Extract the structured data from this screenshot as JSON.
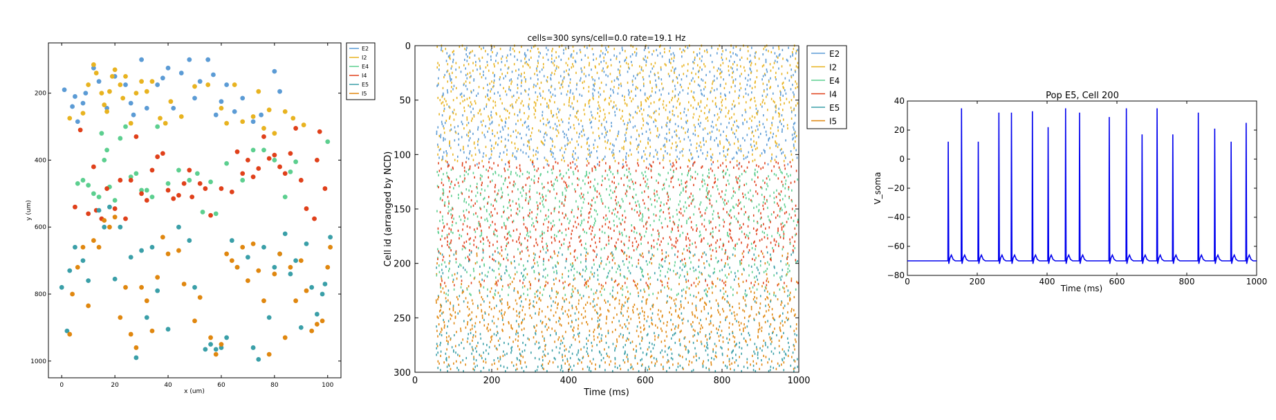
{
  "colors": {
    "E2": "#5b9bd5",
    "I2": "#e8b320",
    "E4": "#5ccf8f",
    "I4": "#e0401a",
    "E5": "#3a9fa8",
    "I5": "#e0870f",
    "trace": "#0000ee"
  },
  "chart_data": [
    {
      "type": "scatter",
      "title": "",
      "xlabel": "x (um)",
      "ylabel": "y (um)",
      "xlim": [
        -5,
        105
      ],
      "ylim": [
        1050,
        50
      ],
      "y_inverted": true,
      "xticks": [
        0,
        20,
        40,
        60,
        80,
        100
      ],
      "yticks": [
        200,
        400,
        600,
        800,
        1000
      ],
      "legend": {
        "placement": "outside-right",
        "entries": [
          "E2",
          "I2",
          "E4",
          "I4",
          "E5",
          "I5"
        ]
      },
      "series": [
        {
          "name": "E2",
          "points": [
            [
              1,
              190
            ],
            [
              4,
              240
            ],
            [
              5,
              210
            ],
            [
              6,
              285
            ],
            [
              8,
              230
            ],
            [
              9,
              200
            ],
            [
              12,
              125
            ],
            [
              14,
              165
            ],
            [
              17,
              245
            ],
            [
              20,
              150
            ],
            [
              24,
              175
            ],
            [
              26,
              230
            ],
            [
              27,
              265
            ],
            [
              30,
              100
            ],
            [
              32,
              245
            ],
            [
              36,
              175
            ],
            [
              38,
              155
            ],
            [
              40,
              125
            ],
            [
              42,
              245
            ],
            [
              45,
              140
            ],
            [
              48,
              100
            ],
            [
              50,
              215
            ],
            [
              52,
              165
            ],
            [
              55,
              100
            ],
            [
              57,
              145
            ],
            [
              58,
              265
            ],
            [
              60,
              225
            ],
            [
              62,
              175
            ],
            [
              65,
              255
            ],
            [
              68,
              215
            ],
            [
              72,
              285
            ],
            [
              75,
              265
            ],
            [
              80,
              135
            ],
            [
              82,
              195
            ]
          ]
        },
        {
          "name": "I2",
          "points": [
            [
              3,
              275
            ],
            [
              8,
              260
            ],
            [
              10,
              175
            ],
            [
              12,
              115
            ],
            [
              13,
              140
            ],
            [
              15,
              200
            ],
            [
              16,
              235
            ],
            [
              17,
              255
            ],
            [
              18,
              195
            ],
            [
              19,
              150
            ],
            [
              20,
              130
            ],
            [
              22,
              175
            ],
            [
              23,
              215
            ],
            [
              24,
              150
            ],
            [
              26,
              290
            ],
            [
              28,
              200
            ],
            [
              30,
              165
            ],
            [
              32,
              195
            ],
            [
              34,
              165
            ],
            [
              37,
              275
            ],
            [
              39,
              290
            ],
            [
              41,
              225
            ],
            [
              45,
              270
            ],
            [
              50,
              180
            ],
            [
              55,
              175
            ],
            [
              60,
              245
            ],
            [
              62,
              290
            ],
            [
              65,
              175
            ],
            [
              68,
              285
            ],
            [
              72,
              270
            ],
            [
              74,
              195
            ],
            [
              76,
              305
            ],
            [
              78,
              250
            ],
            [
              80,
              320
            ],
            [
              84,
              255
            ],
            [
              87,
              275
            ],
            [
              91,
              295
            ]
          ]
        },
        {
          "name": "E4",
          "points": [
            [
              6,
              470
            ],
            [
              8,
              460
            ],
            [
              10,
              475
            ],
            [
              12,
              500
            ],
            [
              14,
              510
            ],
            [
              15,
              320
            ],
            [
              16,
              400
            ],
            [
              17,
              370
            ],
            [
              18,
              480
            ],
            [
              20,
              520
            ],
            [
              22,
              335
            ],
            [
              24,
              300
            ],
            [
              26,
              450
            ],
            [
              28,
              440
            ],
            [
              30,
              490
            ],
            [
              32,
              490
            ],
            [
              34,
              510
            ],
            [
              36,
              300
            ],
            [
              40,
              470
            ],
            [
              44,
              430
            ],
            [
              48,
              460
            ],
            [
              51,
              440
            ],
            [
              53,
              555
            ],
            [
              56,
              465
            ],
            [
              58,
              560
            ],
            [
              62,
              410
            ],
            [
              68,
              460
            ],
            [
              72,
              370
            ],
            [
              76,
              370
            ],
            [
              80,
              400
            ],
            [
              84,
              510
            ],
            [
              86,
              435
            ],
            [
              88,
              405
            ],
            [
              100,
              345
            ]
          ]
        },
        {
          "name": "I4",
          "points": [
            [
              5,
              540
            ],
            [
              7,
              310
            ],
            [
              10,
              560
            ],
            [
              12,
              420
            ],
            [
              13,
              550
            ],
            [
              15,
              575
            ],
            [
              17,
              485
            ],
            [
              20,
              545
            ],
            [
              22,
              460
            ],
            [
              24,
              575
            ],
            [
              26,
              460
            ],
            [
              28,
              330
            ],
            [
              30,
              500
            ],
            [
              32,
              520
            ],
            [
              34,
              430
            ],
            [
              36,
              390
            ],
            [
              38,
              380
            ],
            [
              40,
              490
            ],
            [
              42,
              515
            ],
            [
              44,
              505
            ],
            [
              46,
              470
            ],
            [
              48,
              430
            ],
            [
              49,
              510
            ],
            [
              52,
              470
            ],
            [
              54,
              485
            ],
            [
              56,
              565
            ],
            [
              60,
              485
            ],
            [
              64,
              495
            ],
            [
              66,
              375
            ],
            [
              68,
              440
            ],
            [
              70,
              400
            ],
            [
              72,
              450
            ],
            [
              74,
              425
            ],
            [
              76,
              330
            ],
            [
              78,
              395
            ],
            [
              80,
              385
            ],
            [
              82,
              420
            ],
            [
              84,
              440
            ],
            [
              86,
              380
            ],
            [
              88,
              305
            ],
            [
              90,
              460
            ],
            [
              92,
              545
            ],
            [
              95,
              575
            ],
            [
              96,
              400
            ],
            [
              97,
              315
            ],
            [
              99,
              485
            ]
          ]
        },
        {
          "name": "E5",
          "points": [
            [
              0,
              780
            ],
            [
              2,
              910
            ],
            [
              3,
              730
            ],
            [
              5,
              660
            ],
            [
              8,
              700
            ],
            [
              10,
              760
            ],
            [
              14,
              550
            ],
            [
              16,
              600
            ],
            [
              18,
              540
            ],
            [
              20,
              755
            ],
            [
              22,
              600
            ],
            [
              26,
              690
            ],
            [
              28,
              990
            ],
            [
              30,
              670
            ],
            [
              32,
              870
            ],
            [
              34,
              660
            ],
            [
              36,
              790
            ],
            [
              40,
              905
            ],
            [
              44,
              600
            ],
            [
              48,
              640
            ],
            [
              50,
              780
            ],
            [
              54,
              965
            ],
            [
              56,
              950
            ],
            [
              58,
              965
            ],
            [
              60,
              960
            ],
            [
              62,
              930
            ],
            [
              64,
              640
            ],
            [
              66,
              720
            ],
            [
              70,
              690
            ],
            [
              72,
              960
            ],
            [
              74,
              995
            ],
            [
              76,
              660
            ],
            [
              78,
              870
            ],
            [
              80,
              720
            ],
            [
              82,
              680
            ],
            [
              84,
              620
            ],
            [
              86,
              740
            ],
            [
              88,
              700
            ],
            [
              90,
              900
            ],
            [
              92,
              650
            ],
            [
              94,
              780
            ],
            [
              96,
              860
            ],
            [
              98,
              800
            ],
            [
              99,
              770
            ],
            [
              101,
              630
            ]
          ]
        },
        {
          "name": "I5",
          "points": [
            [
              3,
              920
            ],
            [
              4,
              800
            ],
            [
              6,
              720
            ],
            [
              8,
              660
            ],
            [
              10,
              835
            ],
            [
              12,
              640
            ],
            [
              14,
              660
            ],
            [
              16,
              580
            ],
            [
              18,
              600
            ],
            [
              20,
              570
            ],
            [
              22,
              870
            ],
            [
              24,
              780
            ],
            [
              26,
              920
            ],
            [
              28,
              960
            ],
            [
              30,
              780
            ],
            [
              32,
              820
            ],
            [
              34,
              910
            ],
            [
              36,
              750
            ],
            [
              38,
              630
            ],
            [
              40,
              680
            ],
            [
              44,
              670
            ],
            [
              46,
              770
            ],
            [
              50,
              880
            ],
            [
              52,
              810
            ],
            [
              56,
              930
            ],
            [
              58,
              980
            ],
            [
              60,
              950
            ],
            [
              62,
              680
            ],
            [
              64,
              700
            ],
            [
              66,
              720
            ],
            [
              68,
              660
            ],
            [
              70,
              760
            ],
            [
              72,
              650
            ],
            [
              74,
              730
            ],
            [
              76,
              820
            ],
            [
              78,
              980
            ],
            [
              80,
              740
            ],
            [
              82,
              680
            ],
            [
              84,
              930
            ],
            [
              86,
              720
            ],
            [
              88,
              820
            ],
            [
              90,
              700
            ],
            [
              92,
              790
            ],
            [
              94,
              910
            ],
            [
              96,
              890
            ],
            [
              98,
              880
            ],
            [
              100,
              720
            ],
            [
              101,
              660
            ]
          ]
        }
      ]
    },
    {
      "type": "scatter",
      "subtype": "raster",
      "title": "cells=300 syns/cell=0.0 rate=19.1 Hz",
      "xlabel": "Time (ms)",
      "ylabel": "Cell id (arranged by NCD)",
      "xlim": [
        0,
        1000
      ],
      "ylim": [
        300,
        0
      ],
      "y_inverted": true,
      "xticks": [
        0,
        200,
        400,
        600,
        800,
        1000
      ],
      "yticks": [
        0,
        50,
        100,
        150,
        200,
        250,
        300
      ],
      "legend": {
        "placement": "outside-right",
        "entries": [
          "E2",
          "I2",
          "E4",
          "I4",
          "E5",
          "I5"
        ]
      },
      "spike_onset_ms": 55,
      "populations": [
        {
          "name": "E2",
          "cell_range": [
            0,
            110
          ],
          "spike_rate_hz": 19.1
        },
        {
          "name": "I2",
          "cell_range": [
            0,
            110
          ],
          "spike_rate_hz": 19.1
        },
        {
          "name": "E4",
          "cell_range": [
            100,
            230
          ],
          "spike_rate_hz": 19.1
        },
        {
          "name": "I4",
          "cell_range": [
            105,
            225
          ],
          "spike_rate_hz": 19.1
        },
        {
          "name": "E5",
          "cell_range": [
            190,
            300
          ],
          "spike_rate_hz": 19.1
        },
        {
          "name": "I5",
          "cell_range": [
            190,
            300
          ],
          "spike_rate_hz": 19.1
        }
      ]
    },
    {
      "type": "line",
      "title": "Pop E5, Cell 200",
      "xlabel": "Time (ms)",
      "ylabel": "V_soma",
      "xlim": [
        0,
        1000
      ],
      "ylim": [
        -80,
        40
      ],
      "xticks": [
        0,
        200,
        400,
        600,
        800,
        1000
      ],
      "yticks": [
        -80,
        -60,
        -40,
        -20,
        0,
        20,
        40
      ],
      "resting_potential_mv": -70,
      "spike_times_ms": [
        117,
        155,
        203,
        262,
        298,
        358,
        403,
        453,
        493,
        578,
        627,
        672,
        715,
        760,
        833,
        880,
        927,
        970
      ],
      "spike_peaks_mv": [
        12,
        35,
        12,
        32,
        32,
        33,
        22,
        35,
        32,
        29,
        35,
        17,
        35,
        17,
        32,
        21,
        12,
        25
      ]
    }
  ]
}
